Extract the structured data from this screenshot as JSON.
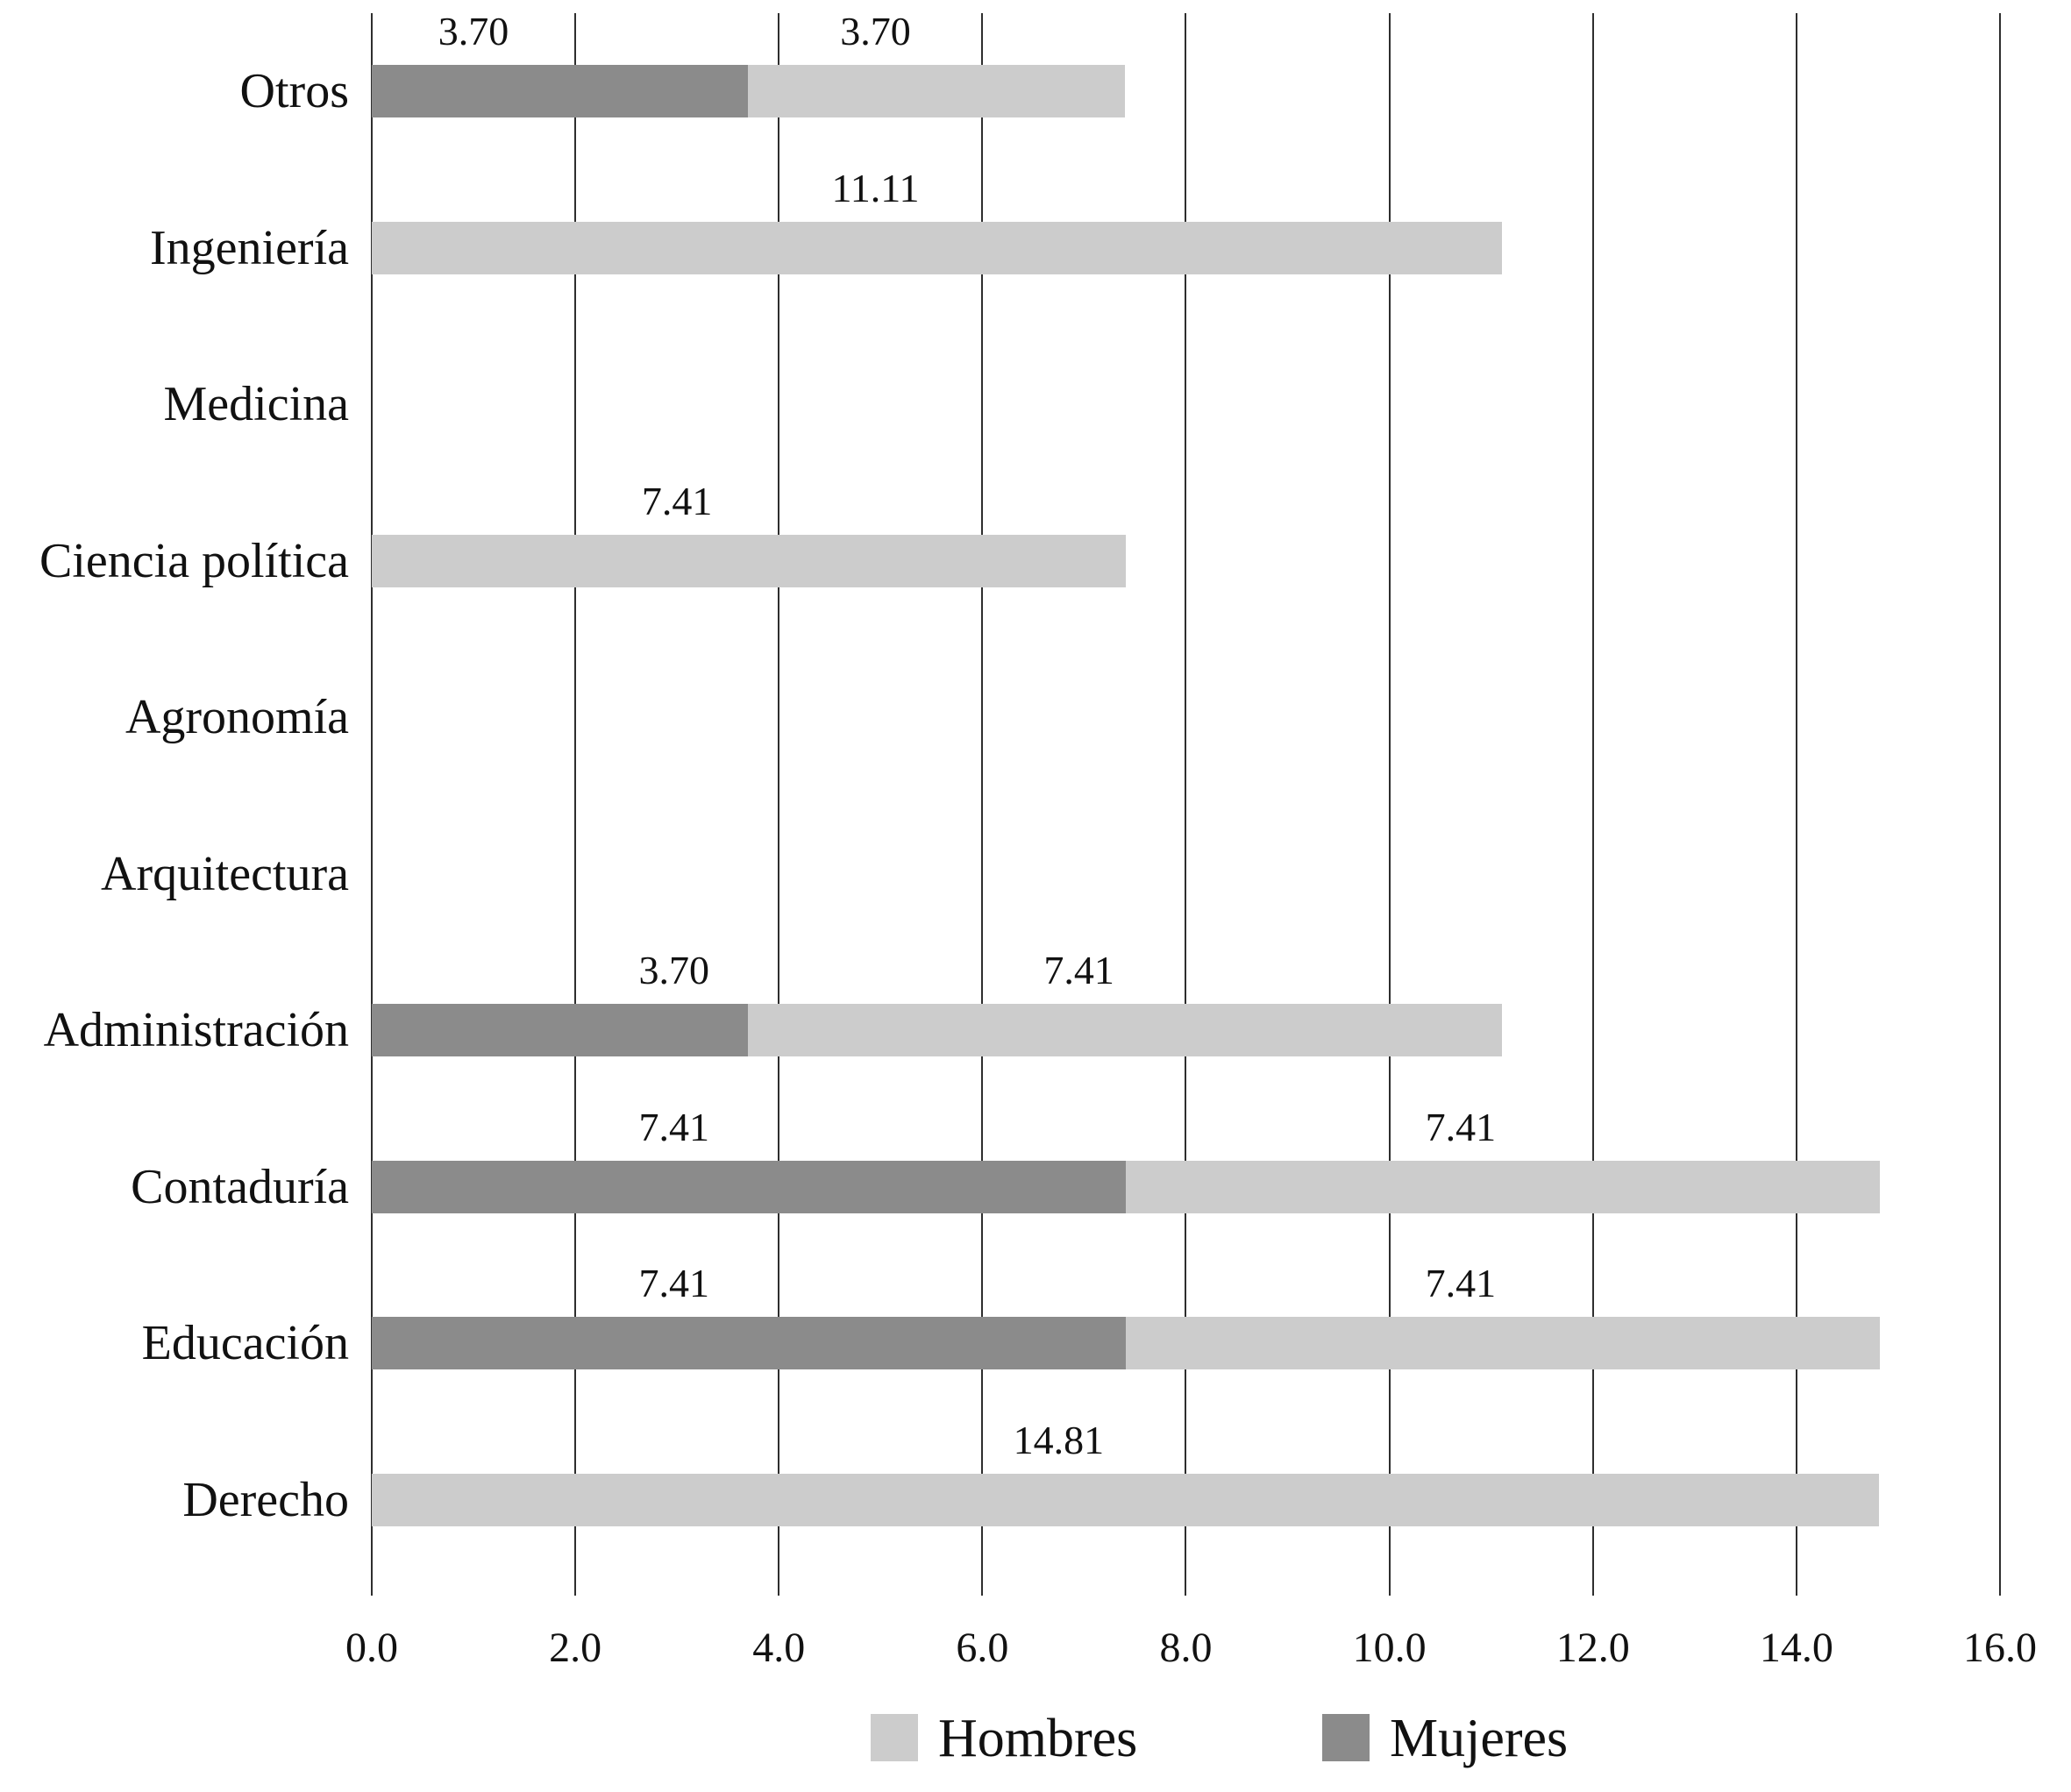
{
  "chart_data": {
    "type": "bar",
    "orientation": "horizontal",
    "stacked": true,
    "title": "",
    "xlabel": "",
    "ylabel": "",
    "categories": [
      "Otros",
      "Ingeniería",
      "Medicina",
      "Ciencia política",
      "Agronomía",
      "Arquitectura",
      "Administración",
      "Contaduría",
      "Educación",
      "Derecho"
    ],
    "series": [
      {
        "name": "Mujeres",
        "color": "#8b8b8b",
        "values": [
          3.7,
          0,
          0,
          0,
          0,
          0,
          3.7,
          7.41,
          7.41,
          0
        ]
      },
      {
        "name": "Hombres",
        "color": "#cccccc",
        "values": [
          3.7,
          11.11,
          0,
          7.41,
          0,
          0,
          7.41,
          7.41,
          7.41,
          14.81
        ]
      }
    ],
    "stack_order_note": "Mujeres segment drawn first from axis, then Hombres",
    "x_axis": {
      "min": 0,
      "max": 16,
      "tick_step": 2,
      "tick_labels": [
        "0.0",
        "2.0",
        "4.0",
        "6.0",
        "8.0",
        "10.0",
        "12.0",
        "14.0",
        "16.0"
      ],
      "grid": true
    },
    "data_labels": [
      {
        "category": "Otros",
        "series": "Mujeres",
        "text": "3.70",
        "x": 1.0
      },
      {
        "category": "Otros",
        "series": "Hombres",
        "text": "3.70",
        "x": 4.95
      },
      {
        "category": "Ingeniería",
        "series": "Hombres",
        "text": "11.11",
        "x": 4.95
      },
      {
        "category": "Ciencia política",
        "series": "Hombres",
        "text": "7.41",
        "x": 3.0
      },
      {
        "category": "Administración",
        "series": "Mujeres",
        "text": "3.70",
        "x": 2.97
      },
      {
        "category": "Administración",
        "series": "Hombres",
        "text": "7.41",
        "x": 6.95
      },
      {
        "category": "Contaduría",
        "series": "Mujeres",
        "text": "7.41",
        "x": 2.97
      },
      {
        "category": "Contaduría",
        "series": "Hombres",
        "text": "7.41",
        "x": 10.7
      },
      {
        "category": "Educación",
        "series": "Mujeres",
        "text": "7.41",
        "x": 2.97
      },
      {
        "category": "Educación",
        "series": "Hombres",
        "text": "7.41",
        "x": 10.7
      },
      {
        "category": "Derecho",
        "series": "Hombres",
        "text": "14.81",
        "x": 6.75
      }
    ],
    "legend": {
      "position": "bottom",
      "items": [
        {
          "label": "Hombres",
          "color": "#cccccc"
        },
        {
          "label": "Mujeres",
          "color": "#8b8b8b"
        }
      ]
    },
    "colors": {
      "hombres": "#cccccc",
      "mujeres": "#8b8b8b",
      "gridline": "#2e2e2e",
      "text": "#111111",
      "background": "#ffffff"
    }
  }
}
